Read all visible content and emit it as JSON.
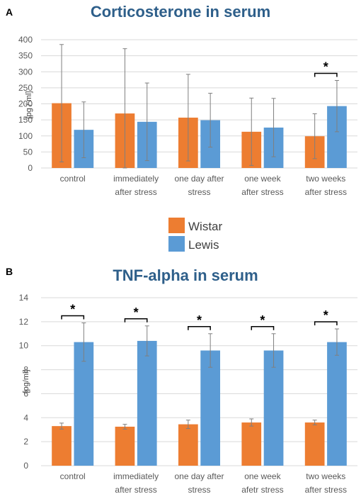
{
  "colors": {
    "wistar": "#ed7d31",
    "lewis": "#5b9bd5",
    "errorbar": "#7f7f7f",
    "grid": "#d9d9d9",
    "title": "#2e5f8a"
  },
  "legend": {
    "items": [
      {
        "label": "Wistar",
        "color": "#ed7d31"
      },
      {
        "label": "Lewis",
        "color": "#5b9bd5"
      }
    ]
  },
  "chart_data": [
    {
      "panel": "A",
      "type": "bar",
      "title": "Corticosterone in serum",
      "ylabel": "[pg / ml]",
      "xlabel": "",
      "ylim": [
        0,
        400
      ],
      "yticks": [
        0,
        50,
        100,
        150,
        200,
        250,
        300,
        350,
        400
      ],
      "grid": true,
      "categories": [
        [
          "control"
        ],
        [
          "immediately",
          "after stress"
        ],
        [
          "one day after",
          "stress"
        ],
        [
          "one week",
          "after stress"
        ],
        [
          "two weeks",
          "after stress"
        ]
      ],
      "series": [
        {
          "name": "Wistar",
          "values": [
            202,
            170,
            157,
            113,
            99
          ],
          "error": [
            183,
            202,
            135,
            105,
            70
          ]
        },
        {
          "name": "Lewis",
          "values": [
            119,
            144,
            149,
            126,
            193
          ],
          "error": [
            87,
            121,
            84,
            91,
            80
          ]
        }
      ],
      "significance": [
        {
          "category": 4,
          "label": "*"
        }
      ]
    },
    {
      "panel": "B",
      "type": "bar",
      "title": "TNF-alpha in serum",
      "ylabel": "[pg/ml]",
      "xlabel": "",
      "ylim": [
        0,
        14
      ],
      "yticks": [
        0,
        2,
        4,
        6,
        8,
        10,
        12,
        14
      ],
      "grid": true,
      "categories": [
        [
          "control"
        ],
        [
          "immediately",
          "after stress"
        ],
        [
          "one day after",
          "stress"
        ],
        [
          "one week",
          "afetr stress"
        ],
        [
          "two weeks",
          "after stress"
        ]
      ],
      "series": [
        {
          "name": "Wistar",
          "values": [
            3.3,
            3.25,
            3.45,
            3.6,
            3.6
          ],
          "error": [
            0.25,
            0.2,
            0.35,
            0.3,
            0.2
          ]
        },
        {
          "name": "Lewis",
          "values": [
            10.3,
            10.4,
            9.6,
            9.6,
            10.3
          ],
          "error": [
            1.6,
            1.25,
            1.4,
            1.4,
            1.1
          ]
        }
      ],
      "significance": [
        {
          "category": 0,
          "label": "*"
        },
        {
          "category": 1,
          "label": "*"
        },
        {
          "category": 2,
          "label": "*"
        },
        {
          "category": 3,
          "label": "*"
        },
        {
          "category": 4,
          "label": "*"
        }
      ]
    }
  ]
}
